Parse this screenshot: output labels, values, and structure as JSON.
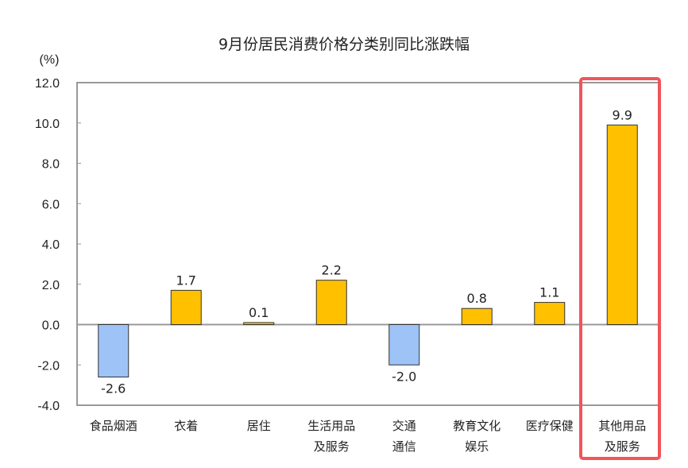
{
  "chart_data": {
    "type": "bar",
    "title": "9月份居民消费价格分类别同比涨跌幅",
    "ylabel": "(%)",
    "ylim": [
      -4,
      12
    ],
    "yticks": [
      "12.0",
      "10.0",
      "8.0",
      "6.0",
      "4.0",
      "2.0",
      "0.0",
      "-2.0",
      "-4.0"
    ],
    "categories": [
      [
        "食品烟酒"
      ],
      [
        "衣着"
      ],
      [
        "居住"
      ],
      [
        "生活用品",
        "及服务"
      ],
      [
        "交通",
        "通信"
      ],
      [
        "教育文化",
        "娱乐"
      ],
      [
        "医疗保健"
      ],
      [
        "其他用品",
        "及服务"
      ]
    ],
    "values": [
      -2.6,
      1.7,
      0.1,
      2.2,
      -2.0,
      0.8,
      1.1,
      9.9
    ],
    "value_labels": [
      "-2.6",
      "1.7",
      "0.1",
      "2.2",
      "-2.0",
      "0.8",
      "1.1",
      "9.9"
    ],
    "grid": false,
    "highlighted_category": "其他用品及服务",
    "colors": {
      "positive": "#FFC000",
      "negative": "#9DC3F7",
      "highlight_box": "#F0555A",
      "axis": "#999999"
    }
  }
}
